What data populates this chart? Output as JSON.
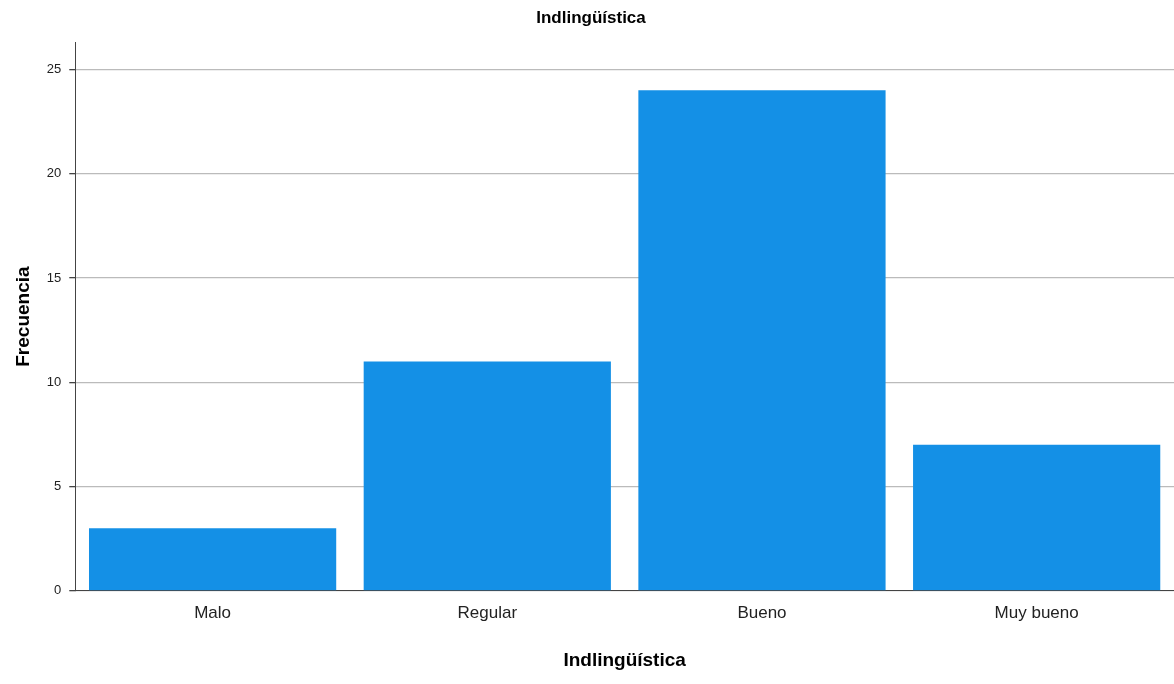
{
  "chart_data": {
    "type": "bar",
    "title": "Indlingüística",
    "xlabel": "Indlingüística",
    "ylabel": "Frecuencia",
    "categories": [
      "Malo",
      "Regular",
      "Bueno",
      "Muy bueno"
    ],
    "values": [
      3,
      11,
      24,
      7
    ],
    "color": "#1490e6",
    "ylim": [
      0,
      26.3
    ],
    "yticks": [
      0,
      5,
      10,
      15,
      20,
      25
    ],
    "grid": "y"
  }
}
